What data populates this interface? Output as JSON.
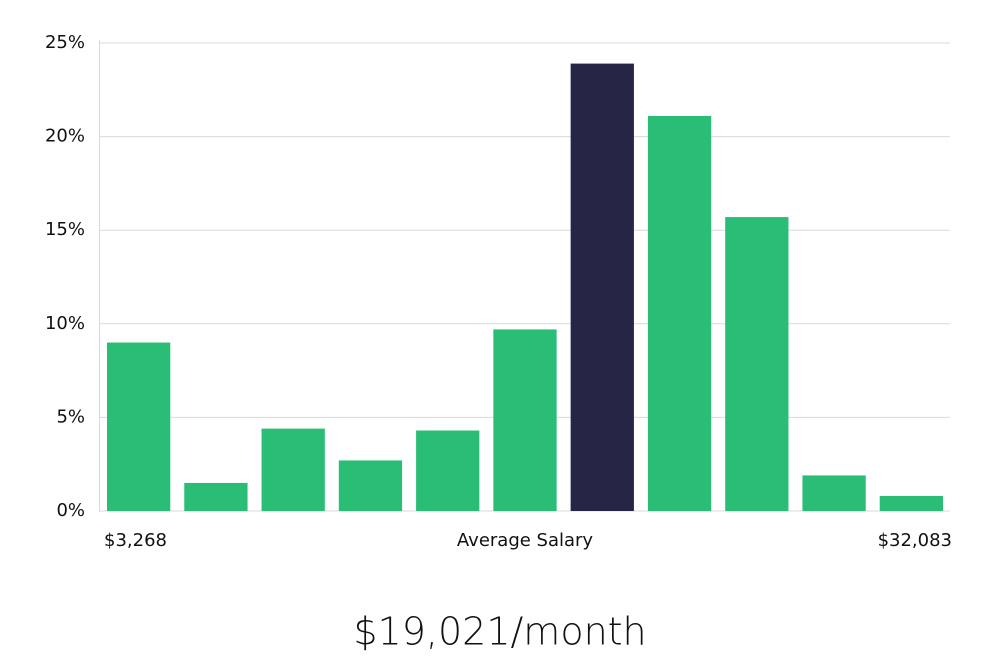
{
  "chart_data": {
    "type": "bar",
    "categories": [
      null,
      null,
      null,
      null,
      null,
      null,
      null,
      null,
      null,
      null,
      null
    ],
    "values": [
      9.0,
      1.5,
      4.4,
      2.7,
      4.3,
      9.7,
      23.9,
      21.1,
      15.7,
      1.9,
      0.8
    ],
    "colors": [
      "#2abd76",
      "#2abd76",
      "#2abd76",
      "#2abd76",
      "#2abd76",
      "#2abd76",
      "#272546",
      "#2abd76",
      "#2abd76",
      "#2abd76",
      "#2abd76"
    ],
    "ylim": [
      0,
      25
    ],
    "yticks": [
      {
        "value": 0,
        "label": "0%"
      },
      {
        "value": 5,
        "label": "5%"
      },
      {
        "value": 10,
        "label": "10%"
      },
      {
        "value": 15,
        "label": "15%"
      },
      {
        "value": 20,
        "label": "20%"
      },
      {
        "value": 25,
        "label": "25%"
      }
    ],
    "grid": true,
    "x_axis_labels": {
      "min": "$3,268",
      "label": "Average Salary",
      "max": "$32,083"
    },
    "summary": "$19,021/month"
  }
}
